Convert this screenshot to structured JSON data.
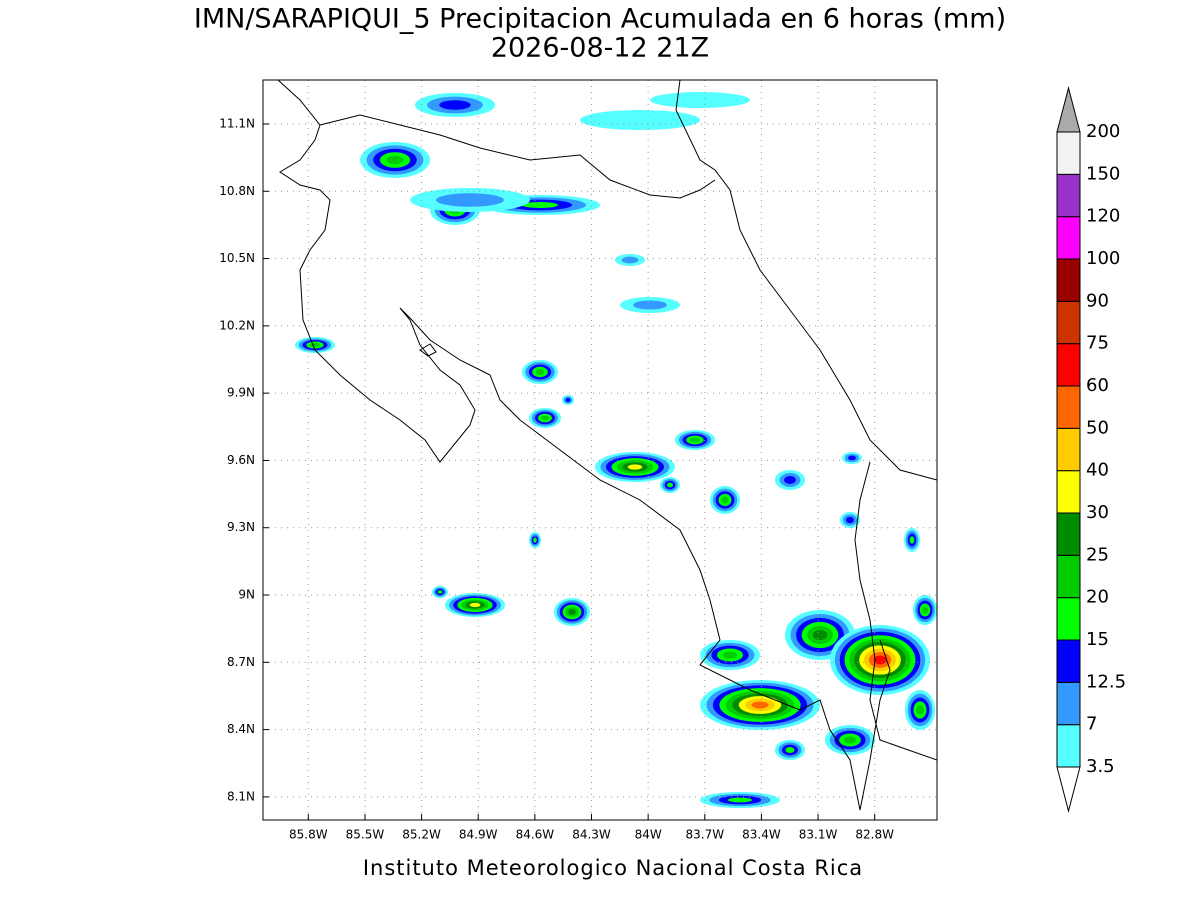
{
  "title": "IMN/SARAPIQUI_5 Precipitacion Acumulada en 6 horas (mm)",
  "subtitle": "2026-08-12 21Z",
  "footer": "Instituto Meteorologico Nacional Costa Rica",
  "map": {
    "xlim": [
      86.04,
      82.47
    ],
    "ylim": [
      7.997,
      11.296
    ],
    "xticks": [
      {
        "value": 85.8,
        "label": "85.8W"
      },
      {
        "value": 85.5,
        "label": "85.5W"
      },
      {
        "value": 85.2,
        "label": "85.2W"
      },
      {
        "value": 84.9,
        "label": "84.9W"
      },
      {
        "value": 84.6,
        "label": "84.6W"
      },
      {
        "value": 84.3,
        "label": "84.3W"
      },
      {
        "value": 84,
        "label": "84W"
      },
      {
        "value": 83.7,
        "label": "83.7W"
      },
      {
        "value": 83.4,
        "label": "83.4W"
      },
      {
        "value": 83.1,
        "label": "83.1W"
      },
      {
        "value": 82.8,
        "label": "82.8W"
      }
    ],
    "yticks": [
      {
        "value": 11.1,
        "label": "11.1N"
      },
      {
        "value": 10.8,
        "label": "10.8N"
      },
      {
        "value": 10.5,
        "label": "10.5N"
      },
      {
        "value": 10.2,
        "label": "10.2N"
      },
      {
        "value": 9.9,
        "label": "9.9N"
      },
      {
        "value": 9.6,
        "label": "9.6N"
      },
      {
        "value": 9.3,
        "label": "9.3N"
      },
      {
        "value": 9,
        "label": "9N"
      },
      {
        "value": 8.7,
        "label": "8.7N"
      },
      {
        "value": 8.4,
        "label": "8.4N"
      },
      {
        "value": 8.1,
        "label": "8.1N"
      }
    ],
    "grid": true
  },
  "colorbar": {
    "levels": [
      3.5,
      7,
      12.5,
      15,
      20,
      25,
      30,
      40,
      50,
      60,
      75,
      90,
      100,
      120,
      150,
      200
    ],
    "colors": [
      "#55ffff",
      "#3399ff",
      "#0000ff",
      "#00ff00",
      "#00cc00",
      "#008c00",
      "#ffff00",
      "#ffcc00",
      "#ff6600",
      "#ff0000",
      "#cc3300",
      "#990000",
      "#ff00ff",
      "#9933cc",
      "#f2f2f2"
    ],
    "under_color": "#ffffff",
    "over_color": "#aaaaaa"
  }
}
